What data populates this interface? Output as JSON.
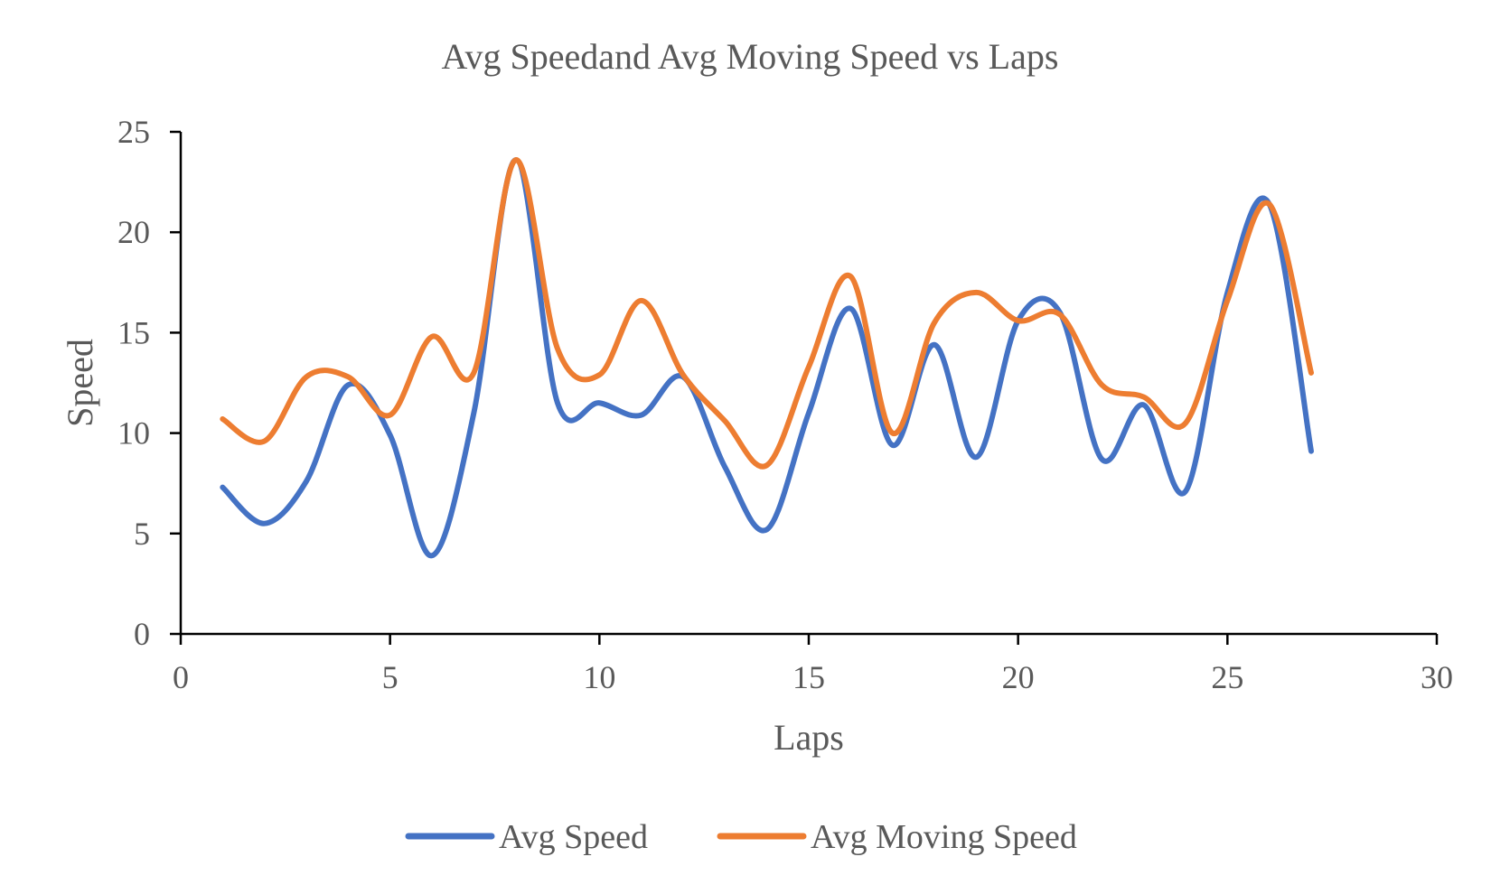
{
  "chart_data": {
    "type": "line",
    "title": "Avg Speedand Avg Moving Speed vs Laps",
    "xlabel": "Laps",
    "ylabel": "Speed",
    "xlim": [
      0,
      30
    ],
    "ylim": [
      0,
      25
    ],
    "x_ticks": [
      0,
      5,
      10,
      15,
      20,
      25,
      30
    ],
    "y_ticks": [
      0,
      5,
      10,
      15,
      20,
      25
    ],
    "grid": false,
    "legend_position": "bottom",
    "smooth": true,
    "series": [
      {
        "name": "Avg Speed",
        "color": "#4472C4",
        "x": [
          1,
          2,
          3,
          4,
          5,
          6,
          7,
          8,
          9,
          10,
          11,
          12,
          13,
          14,
          15,
          16,
          17,
          18,
          19,
          20,
          21,
          22,
          23,
          24,
          25,
          26,
          27
        ],
        "y": [
          7.3,
          5.5,
          7.6,
          12.4,
          9.9,
          3.9,
          11.0,
          23.6,
          11.5,
          11.5,
          10.9,
          12.8,
          8.3,
          5.2,
          11.0,
          16.2,
          9.4,
          14.4,
          8.8,
          15.6,
          16.0,
          8.7,
          11.4,
          7.1,
          17.0,
          21.4,
          9.1
        ]
      },
      {
        "name": "Avg Moving Speed",
        "color": "#ED7D31",
        "x": [
          1,
          2,
          3,
          4,
          5,
          6,
          7,
          8,
          9,
          10,
          11,
          12,
          13,
          14,
          15,
          16,
          17,
          18,
          19,
          20,
          21,
          22,
          23,
          24,
          25,
          26,
          27
        ],
        "y": [
          10.7,
          9.6,
          12.8,
          12.8,
          10.9,
          14.8,
          13.0,
          23.6,
          14.2,
          12.9,
          16.6,
          12.9,
          10.6,
          8.4,
          13.3,
          17.8,
          10.0,
          15.5,
          17.0,
          15.6,
          15.9,
          12.4,
          11.8,
          10.5,
          16.6,
          21.4,
          13.0
        ]
      }
    ]
  }
}
